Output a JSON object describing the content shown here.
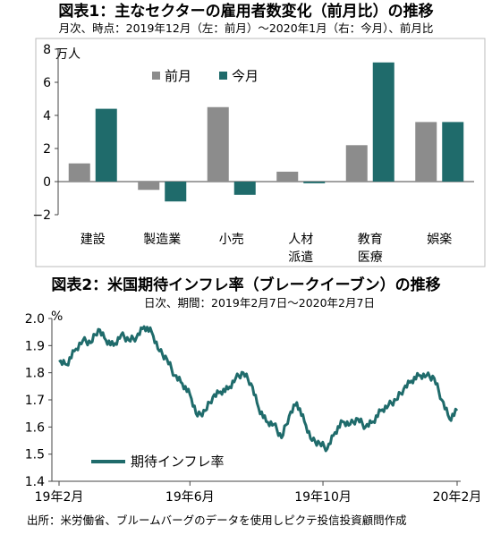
{
  "chart1": {
    "title": "図表1：主なセクターの雇用者数変化（前月比）の推移",
    "subtitle": "月次、時点：2019年12月（左：前月）～2020年1月（右：今月）、前月比",
    "unit": "万人",
    "colors": {
      "prev": "#8c8c8c",
      "curr": "#1f6b6b"
    }
  },
  "chart2": {
    "title": "図表2：米国期待インフレ率（ブレークイーブン）の推移",
    "subtitle": "日次、期間：2019年2月7日～2020年2月7日",
    "unit": "%",
    "color": "#1f6b6b"
  },
  "source": "出所：米労働省、ブルームバーグのデータを使用しピクテ投信投資顧問作成",
  "chart_data": [
    {
      "type": "bar",
      "ylim": [
        -2,
        8
      ],
      "yticks": [
        "8",
        "6",
        "4",
        "2",
        "0",
        "−2"
      ],
      "categories": [
        {
          "lines": [
            "建設"
          ]
        },
        {
          "lines": [
            "製造業"
          ]
        },
        {
          "lines": [
            "小売"
          ]
        },
        {
          "lines": [
            "人材",
            "派遣"
          ]
        },
        {
          "lines": [
            "教育",
            "医療"
          ]
        },
        {
          "lines": [
            "娯楽"
          ]
        }
      ],
      "series": [
        {
          "name": "前月",
          "values": [
            1.1,
            -0.5,
            4.5,
            0.6,
            2.2,
            3.6
          ]
        },
        {
          "name": "今月",
          "values": [
            4.4,
            -1.2,
            -0.8,
            -0.1,
            7.2,
            3.6
          ]
        }
      ],
      "legend": "top-center"
    },
    {
      "type": "line",
      "ylim": [
        1.4,
        2.0
      ],
      "yticks": [
        "2.0",
        "1.9",
        "1.8",
        "1.7",
        "1.6",
        "1.5",
        "1.4"
      ],
      "xticks": [
        "19年2月",
        "19年6月",
        "19年10月",
        "20年2月"
      ],
      "legend": "bottom-left",
      "series": [
        {
          "name": "期待インフレ率",
          "x": [
            "2019-02-07",
            "2019-02-14",
            "2019-02-21",
            "2019-03-01",
            "2019-03-08",
            "2019-03-15",
            "2019-03-22",
            "2019-03-29",
            "2019-04-05",
            "2019-04-12",
            "2019-04-19",
            "2019-04-26",
            "2019-05-03",
            "2019-05-10",
            "2019-05-17",
            "2019-05-24",
            "2019-05-31",
            "2019-06-07",
            "2019-06-14",
            "2019-06-21",
            "2019-06-28",
            "2019-07-05",
            "2019-07-12",
            "2019-07-19",
            "2019-07-26",
            "2019-08-02",
            "2019-08-09",
            "2019-08-16",
            "2019-08-23",
            "2019-08-30",
            "2019-09-06",
            "2019-09-13",
            "2019-09-20",
            "2019-09-27",
            "2019-10-04",
            "2019-10-11",
            "2019-10-18",
            "2019-10-25",
            "2019-11-01",
            "2019-11-08",
            "2019-11-15",
            "2019-11-22",
            "2019-11-29",
            "2019-12-06",
            "2019-12-13",
            "2019-12-20",
            "2019-12-27",
            "2020-01-03",
            "2020-01-10",
            "2020-01-17",
            "2020-01-24",
            "2020-01-31",
            "2020-02-07"
          ],
          "values": [
            1.84,
            1.83,
            1.88,
            1.92,
            1.91,
            1.96,
            1.92,
            1.9,
            1.94,
            1.92,
            1.93,
            1.97,
            1.95,
            1.88,
            1.85,
            1.79,
            1.76,
            1.72,
            1.64,
            1.66,
            1.71,
            1.73,
            1.74,
            1.78,
            1.8,
            1.76,
            1.67,
            1.62,
            1.61,
            1.56,
            1.64,
            1.69,
            1.62,
            1.55,
            1.54,
            1.52,
            1.58,
            1.62,
            1.61,
            1.63,
            1.6,
            1.62,
            1.66,
            1.68,
            1.7,
            1.74,
            1.77,
            1.79,
            1.79,
            1.78,
            1.7,
            1.63,
            1.66
          ]
        }
      ]
    }
  ]
}
